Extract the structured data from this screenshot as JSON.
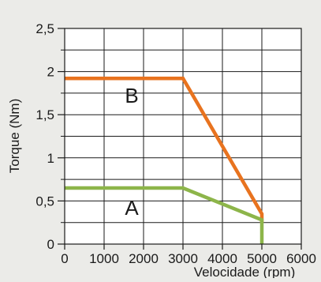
{
  "chart_data": {
    "type": "line",
    "title": "",
    "xlabel": "Velocidade (rpm)",
    "ylabel": "Torque (Nm)",
    "xlim": [
      0,
      6000
    ],
    "ylim": [
      0,
      2.5
    ],
    "x_ticks": [
      {
        "value": 0,
        "label": "0"
      },
      {
        "value": 1000,
        "label": "1000"
      },
      {
        "value": 2000,
        "label": "2000"
      },
      {
        "value": 3000,
        "label": "3000"
      },
      {
        "value": 4000,
        "label": "4000"
      },
      {
        "value": 5000,
        "label": "5000"
      },
      {
        "value": 6000,
        "label": "6000"
      }
    ],
    "y_ticks": [
      {
        "value": 0,
        "label": "0"
      },
      {
        "value": 0.5,
        "label": "0,5"
      },
      {
        "value": 1,
        "label": "1"
      },
      {
        "value": 1.5,
        "label": "1,5"
      },
      {
        "value": 2,
        "label": "2"
      },
      {
        "value": 2.5,
        "label": "2,5"
      }
    ],
    "y_minor_ticks": [
      0.25,
      0.75,
      1.25,
      1.75,
      2.25
    ],
    "x_grid": [
      0,
      1000,
      2000,
      3000,
      4000,
      5000,
      6000
    ],
    "y_grid": [
      0,
      0.25,
      0.5,
      0.75,
      1,
      1.25,
      1.5,
      1.75,
      2,
      2.25,
      2.5
    ],
    "grid": true,
    "legend": "none",
    "series": [
      {
        "name": "B",
        "color": "#e8731f",
        "label_at": {
          "x": 1700,
          "y": 1.72
        },
        "points": [
          {
            "x": 0,
            "y": 1.92
          },
          {
            "x": 3000,
            "y": 1.92
          },
          {
            "x": 5000,
            "y": 0.35
          },
          {
            "x": 5000,
            "y": 0.25
          }
        ]
      },
      {
        "name": "A",
        "color": "#8db54a",
        "label_at": {
          "x": 1700,
          "y": 0.42
        },
        "points": [
          {
            "x": 0,
            "y": 0.65
          },
          {
            "x": 3000,
            "y": 0.65
          },
          {
            "x": 5000,
            "y": 0.28
          },
          {
            "x": 5000,
            "y": 0
          }
        ]
      }
    ]
  }
}
